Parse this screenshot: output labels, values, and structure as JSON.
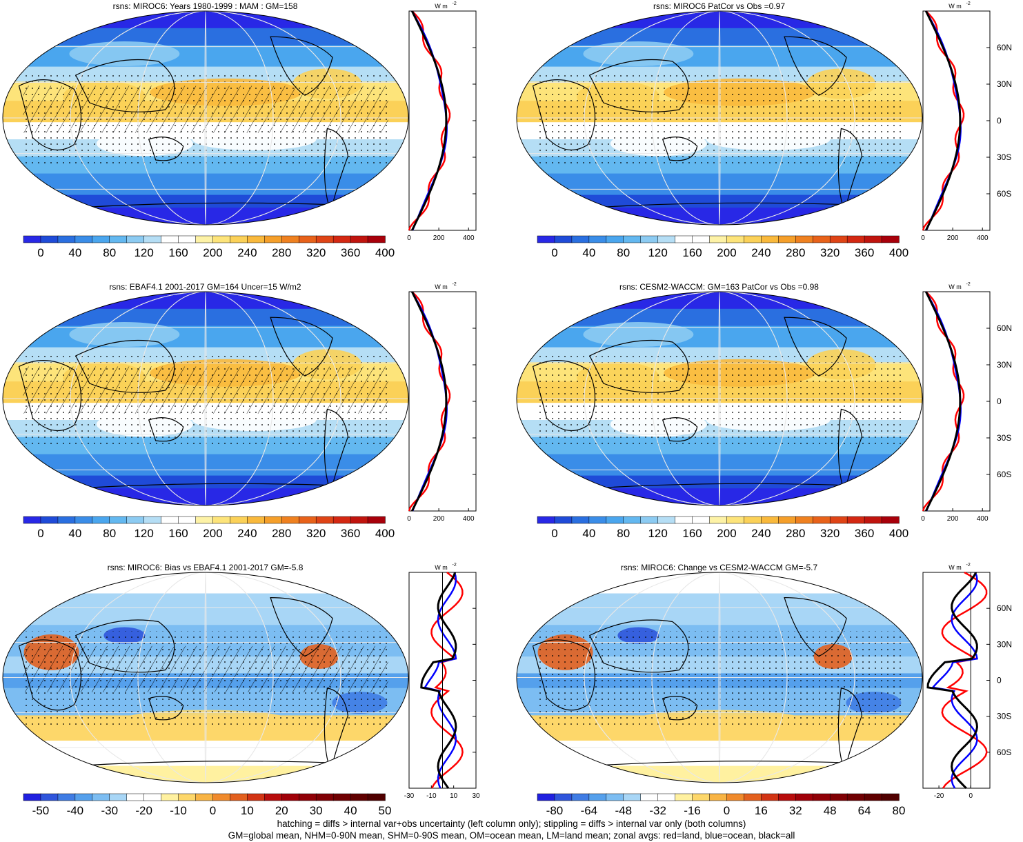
{
  "panels": [
    {
      "id": "p1",
      "title": "rsns: MIROC6: Years 1980-1999 : MAM : GM=158",
      "kind": "clim",
      "colorbar": {
        "labels": [
          "0",
          "40",
          "80",
          "120",
          "160",
          "200",
          "240",
          "280",
          "320",
          "360",
          "400"
        ]
      },
      "profile": {
        "xticks": [
          "0",
          "200",
          "400"
        ],
        "xrange": [
          0,
          450
        ]
      }
    },
    {
      "id": "p2",
      "title": "rsns: MIROC6 PatCor vs Obs =0.97",
      "kind": "clim",
      "colorbar": {
        "labels": [
          "0",
          "40",
          "80",
          "120",
          "160",
          "200",
          "240",
          "280",
          "320",
          "360",
          "400"
        ]
      },
      "profile": {
        "xticks": [
          "0",
          "200",
          "400"
        ],
        "xrange": [
          0,
          450
        ]
      }
    },
    {
      "id": "p3",
      "title": "rsns: EBAF4.1 2001-2017 GM=164 Uncer=15 W/m2",
      "kind": "clim",
      "colorbar": {
        "labels": [
          "0",
          "40",
          "80",
          "120",
          "160",
          "200",
          "240",
          "280",
          "320",
          "360",
          "400"
        ]
      },
      "profile": {
        "xticks": [
          "0",
          "200",
          "400"
        ],
        "xrange": [
          0,
          450
        ]
      }
    },
    {
      "id": "p4",
      "title": "rsns: CESM2-WACCM: GM=163 PatCor vs Obs =0.98",
      "kind": "clim",
      "colorbar": {
        "labels": [
          "0",
          "40",
          "80",
          "120",
          "160",
          "200",
          "240",
          "280",
          "320",
          "360",
          "400"
        ]
      },
      "profile": {
        "xticks": [
          "0",
          "200",
          "400"
        ],
        "xrange": [
          0,
          450
        ]
      }
    },
    {
      "id": "p5",
      "title": "rsns: MIROC6: Bias vs EBAF4.1 2001-2017 GM=-5.8",
      "kind": "bias",
      "colorbar": {
        "labels": [
          "-50",
          "-40",
          "-30",
          "-20",
          "-10",
          "0",
          "10",
          "20",
          "30",
          "40",
          "50"
        ]
      },
      "profile": {
        "xticks": [
          "-30",
          "-10",
          "10",
          "30"
        ],
        "xrange": [
          -30,
          30
        ]
      }
    },
    {
      "id": "p6",
      "title": "rsns: MIROC6: Change vs CESM2-WACCM GM=-5.7",
      "kind": "bias",
      "colorbar": {
        "labels": [
          "-80",
          "-64",
          "-48",
          "-32",
          "-16",
          "0",
          "16",
          "32",
          "48",
          "64",
          "80"
        ]
      },
      "profile": {
        "xticks": [
          "-20",
          "0"
        ],
        "xrange": [
          -30,
          12
        ]
      }
    }
  ],
  "profile_common": {
    "unit": "W m",
    "unit_sup": "-2",
    "lat_labels": [
      "60N",
      "30N",
      "0",
      "30S",
      "60S"
    ]
  },
  "colors": {
    "clim_scale": [
      "#2828e6",
      "#1f4bd8",
      "#2a6fe0",
      "#3a8de8",
      "#4aa6ee",
      "#63b8f0",
      "#8ccbf2",
      "#b5def5",
      "#ffffff",
      "#ffffff",
      "#fdf2a6",
      "#fde47a",
      "#fbd158",
      "#f9b93c",
      "#f59f2a",
      "#ef8120",
      "#e8621a",
      "#df4416",
      "#d42812",
      "#c0140e",
      "#a8000a"
    ],
    "land": "#ff0000",
    "ocean": "#0000ff",
    "all": "#000000"
  },
  "footer": {
    "line1": "hatching = diffs > internal var+obs uncertainty (left column only); stippling = diffs > internal var only (both columns)",
    "line2": "GM=global mean, NHM=0-90N mean, SHM=0-90S mean, OM=ocean mean, LM=land mean; zonal avgs: red=land, blue=ocean, black=all"
  }
}
